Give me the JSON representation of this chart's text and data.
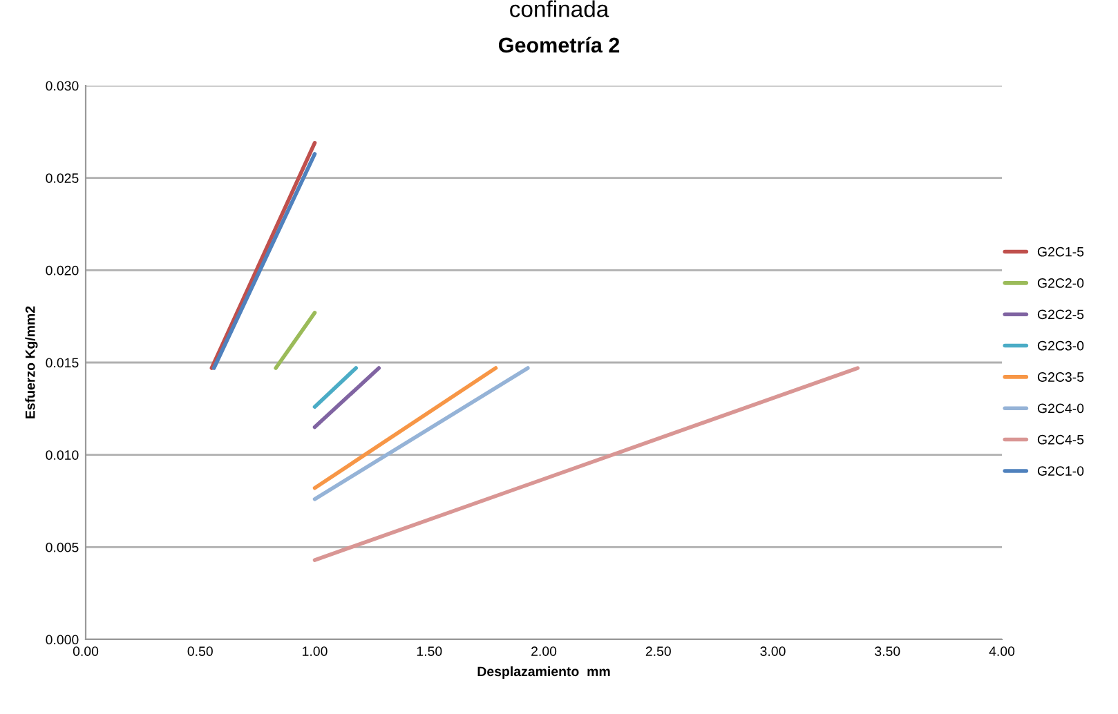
{
  "chart_data": {
    "type": "line",
    "title": "confinada",
    "subtitle": "Geometría 2",
    "xlabel": "Desplazamiento  mm",
    "ylabel": "Esfuerzo Kg/mm2",
    "xlim": [
      0,
      4
    ],
    "xticks": [
      {
        "value": 0,
        "label": "0.00"
      },
      {
        "value": 0.5,
        "label": "0.50"
      },
      {
        "value": 1,
        "label": "1.00"
      },
      {
        "value": 1.5,
        "label": "1.50"
      },
      {
        "value": 2,
        "label": "2.00"
      },
      {
        "value": 2.5,
        "label": "2.50"
      },
      {
        "value": 3,
        "label": "3.00"
      },
      {
        "value": 3.5,
        "label": "3.50"
      },
      {
        "value": 4,
        "label": "4.00"
      }
    ],
    "ylim": [
      0,
      0.03
    ],
    "yticks": [
      {
        "value": 0,
        "label": "0.000"
      },
      {
        "value": 0.005,
        "label": "0.005"
      },
      {
        "value": 0.01,
        "label": "0.010"
      },
      {
        "value": 0.015,
        "label": "0.015"
      },
      {
        "value": 0.02,
        "label": "0.020"
      },
      {
        "value": 0.025,
        "label": "0.025"
      },
      {
        "value": 0.03,
        "label": "0.030"
      }
    ],
    "grid": "y",
    "legend": "right",
    "marker": "none",
    "line_style": "solid",
    "series": [
      {
        "name": "G2C1-5",
        "color": "#c0504d",
        "x": [
          0.55,
          1.0
        ],
        "values": [
          0.0147,
          0.0269
        ]
      },
      {
        "name": "G2C2-0",
        "color": "#9bbb59",
        "x": [
          0.83,
          1.0
        ],
        "values": [
          0.0147,
          0.0177
        ]
      },
      {
        "name": "G2C2-5",
        "color": "#8064a2",
        "x": [
          1.0,
          1.28
        ],
        "values": [
          0.0115,
          0.0147
        ]
      },
      {
        "name": "G2C3-0",
        "color": "#4bacc6",
        "x": [
          1.0,
          1.18
        ],
        "values": [
          0.0126,
          0.0147
        ]
      },
      {
        "name": "G2C3-5",
        "color": "#f79646",
        "x": [
          1.0,
          1.79
        ],
        "values": [
          0.0082,
          0.0147
        ]
      },
      {
        "name": "G2C4-0",
        "color": "#95b3d7",
        "x": [
          1.0,
          1.93
        ],
        "values": [
          0.0076,
          0.0147
        ]
      },
      {
        "name": "G2C4-5",
        "color": "#d99694",
        "x": [
          1.0,
          3.37
        ],
        "values": [
          0.0043,
          0.0147
        ]
      },
      {
        "name": "G2C1-0",
        "color": "#4f81bd",
        "x": [
          0.56,
          1.0
        ],
        "values": [
          0.0147,
          0.0263
        ]
      }
    ]
  }
}
